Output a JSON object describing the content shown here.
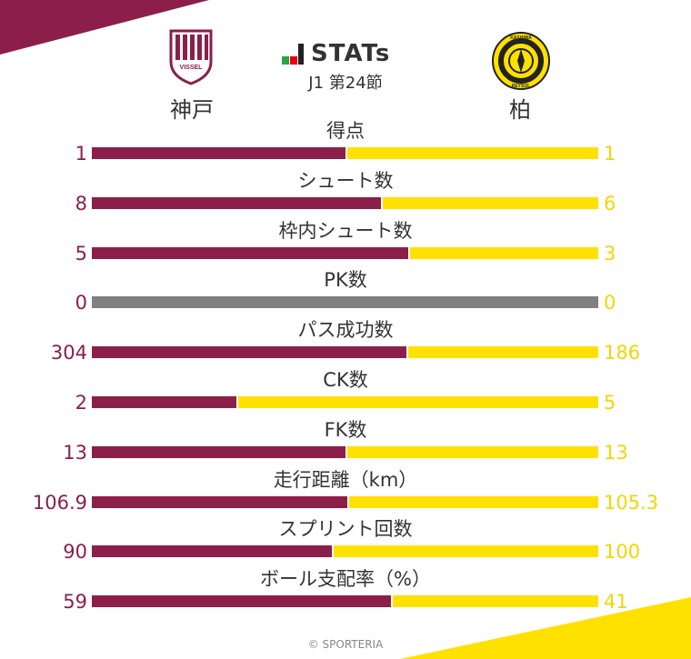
{
  "header": {
    "brand_mark": "J",
    "brand_text": "STATs",
    "round": "J1 第24節",
    "home_team": "神戸",
    "away_team": "柏",
    "home_logo_text": "VISSEL",
    "away_logo_text_top": "KASHIWA",
    "away_logo_text_bottom": "REYSOL"
  },
  "colors": {
    "home": "#8c1f4a",
    "away": "#ffe100",
    "away_text": "#f2d600",
    "empty": "#808080"
  },
  "stats": [
    {
      "label": "得点",
      "home": "1",
      "away": "1",
      "home_share": 0.5
    },
    {
      "label": "シュート数",
      "home": "8",
      "away": "6",
      "home_share": 0.5714
    },
    {
      "label": "枠内シュート数",
      "home": "5",
      "away": "3",
      "home_share": 0.625
    },
    {
      "label": "PK数",
      "home": "0",
      "away": "0",
      "home_share": null
    },
    {
      "label": "パス成功数",
      "home": "304",
      "away": "186",
      "home_share": 0.6204
    },
    {
      "label": "CK数",
      "home": "2",
      "away": "5",
      "home_share": 0.2857
    },
    {
      "label": "FK数",
      "home": "13",
      "away": "13",
      "home_share": 0.5
    },
    {
      "label": "走行距離（km）",
      "home": "106.9",
      "away": "105.3",
      "home_share": 0.5038
    },
    {
      "label": "スプリント回数",
      "home": "90",
      "away": "100",
      "home_share": 0.4737
    },
    {
      "label": "ボール支配率（%）",
      "home": "59",
      "away": "41",
      "home_share": 0.59
    }
  ],
  "footer": "© SPORTERIA"
}
